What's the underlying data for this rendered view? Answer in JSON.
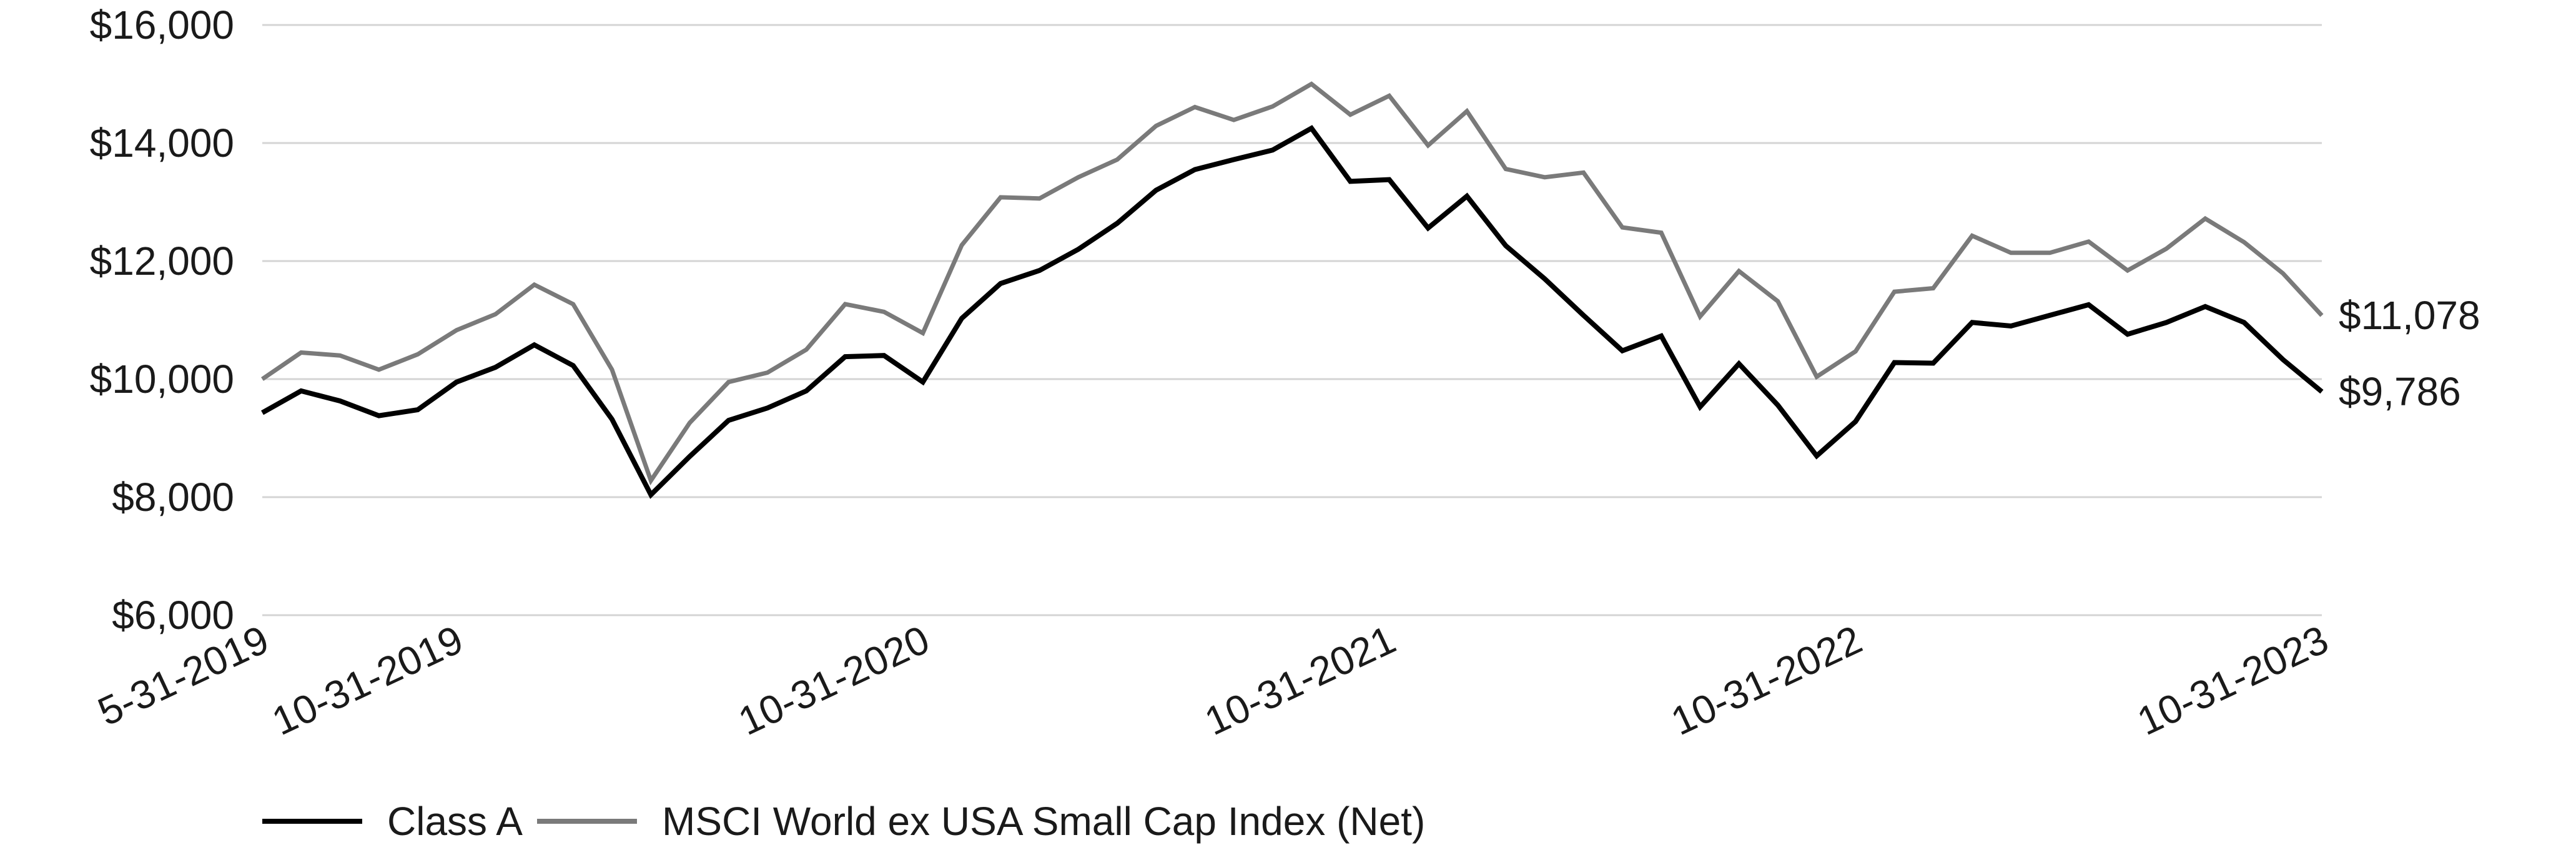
{
  "chart_data": {
    "type": "line",
    "title": "",
    "xlabel": "",
    "ylabel": "",
    "ylim": [
      6000,
      16000
    ],
    "y_ticks": [
      "$6,000",
      "$8,000",
      "$10,000",
      "$12,000",
      "$14,000",
      "$16,000"
    ],
    "y_tick_values": [
      6000,
      8000,
      10000,
      12000,
      14000,
      16000
    ],
    "x_tick_labels": [
      "5-31-2019",
      "10-31-2019",
      "10-31-2020",
      "10-31-2021",
      "10-31-2022",
      "10-31-2023"
    ],
    "x_tick_indices": [
      0,
      5,
      17,
      29,
      41,
      53
    ],
    "grid": "horizontal",
    "legend_position": "bottom-left",
    "end_labels": [
      "$9,786",
      "$11,078"
    ],
    "series": [
      {
        "name": "Class A",
        "color": "#000000",
        "values": [
          9430,
          9800,
          9630,
          9380,
          9480,
          9950,
          10200,
          10580,
          10230,
          9320,
          8040,
          8690,
          9300,
          9510,
          9800,
          10380,
          10400,
          9950,
          11030,
          11620,
          11840,
          12200,
          12640,
          13200,
          13550,
          13720,
          13880,
          14250,
          13350,
          13380,
          12560,
          13100,
          12260,
          11700,
          11080,
          10480,
          10730,
          9530,
          10260,
          9560,
          8700,
          9280,
          10280,
          10270,
          10960,
          10900,
          11080,
          11260,
          10760,
          10960,
          11230,
          10960,
          10330,
          9786
        ]
      },
      {
        "name": "MSCI World ex USA Small Cap Index (Net)",
        "color": "#7a7a7a",
        "values": [
          10000,
          10450,
          10400,
          10160,
          10420,
          10830,
          11100,
          11600,
          11270,
          10160,
          8280,
          9260,
          9950,
          10110,
          10500,
          11270,
          11140,
          10780,
          12270,
          13080,
          13060,
          13420,
          13720,
          14290,
          14610,
          14390,
          14620,
          15000,
          14480,
          14800,
          13960,
          14540,
          13560,
          13420,
          13500,
          12570,
          12480,
          11060,
          11830,
          11320,
          10040,
          10470,
          11480,
          11540,
          12430,
          12140,
          12140,
          12330,
          11840,
          12210,
          12720,
          12320,
          11790,
          11078
        ]
      }
    ]
  }
}
